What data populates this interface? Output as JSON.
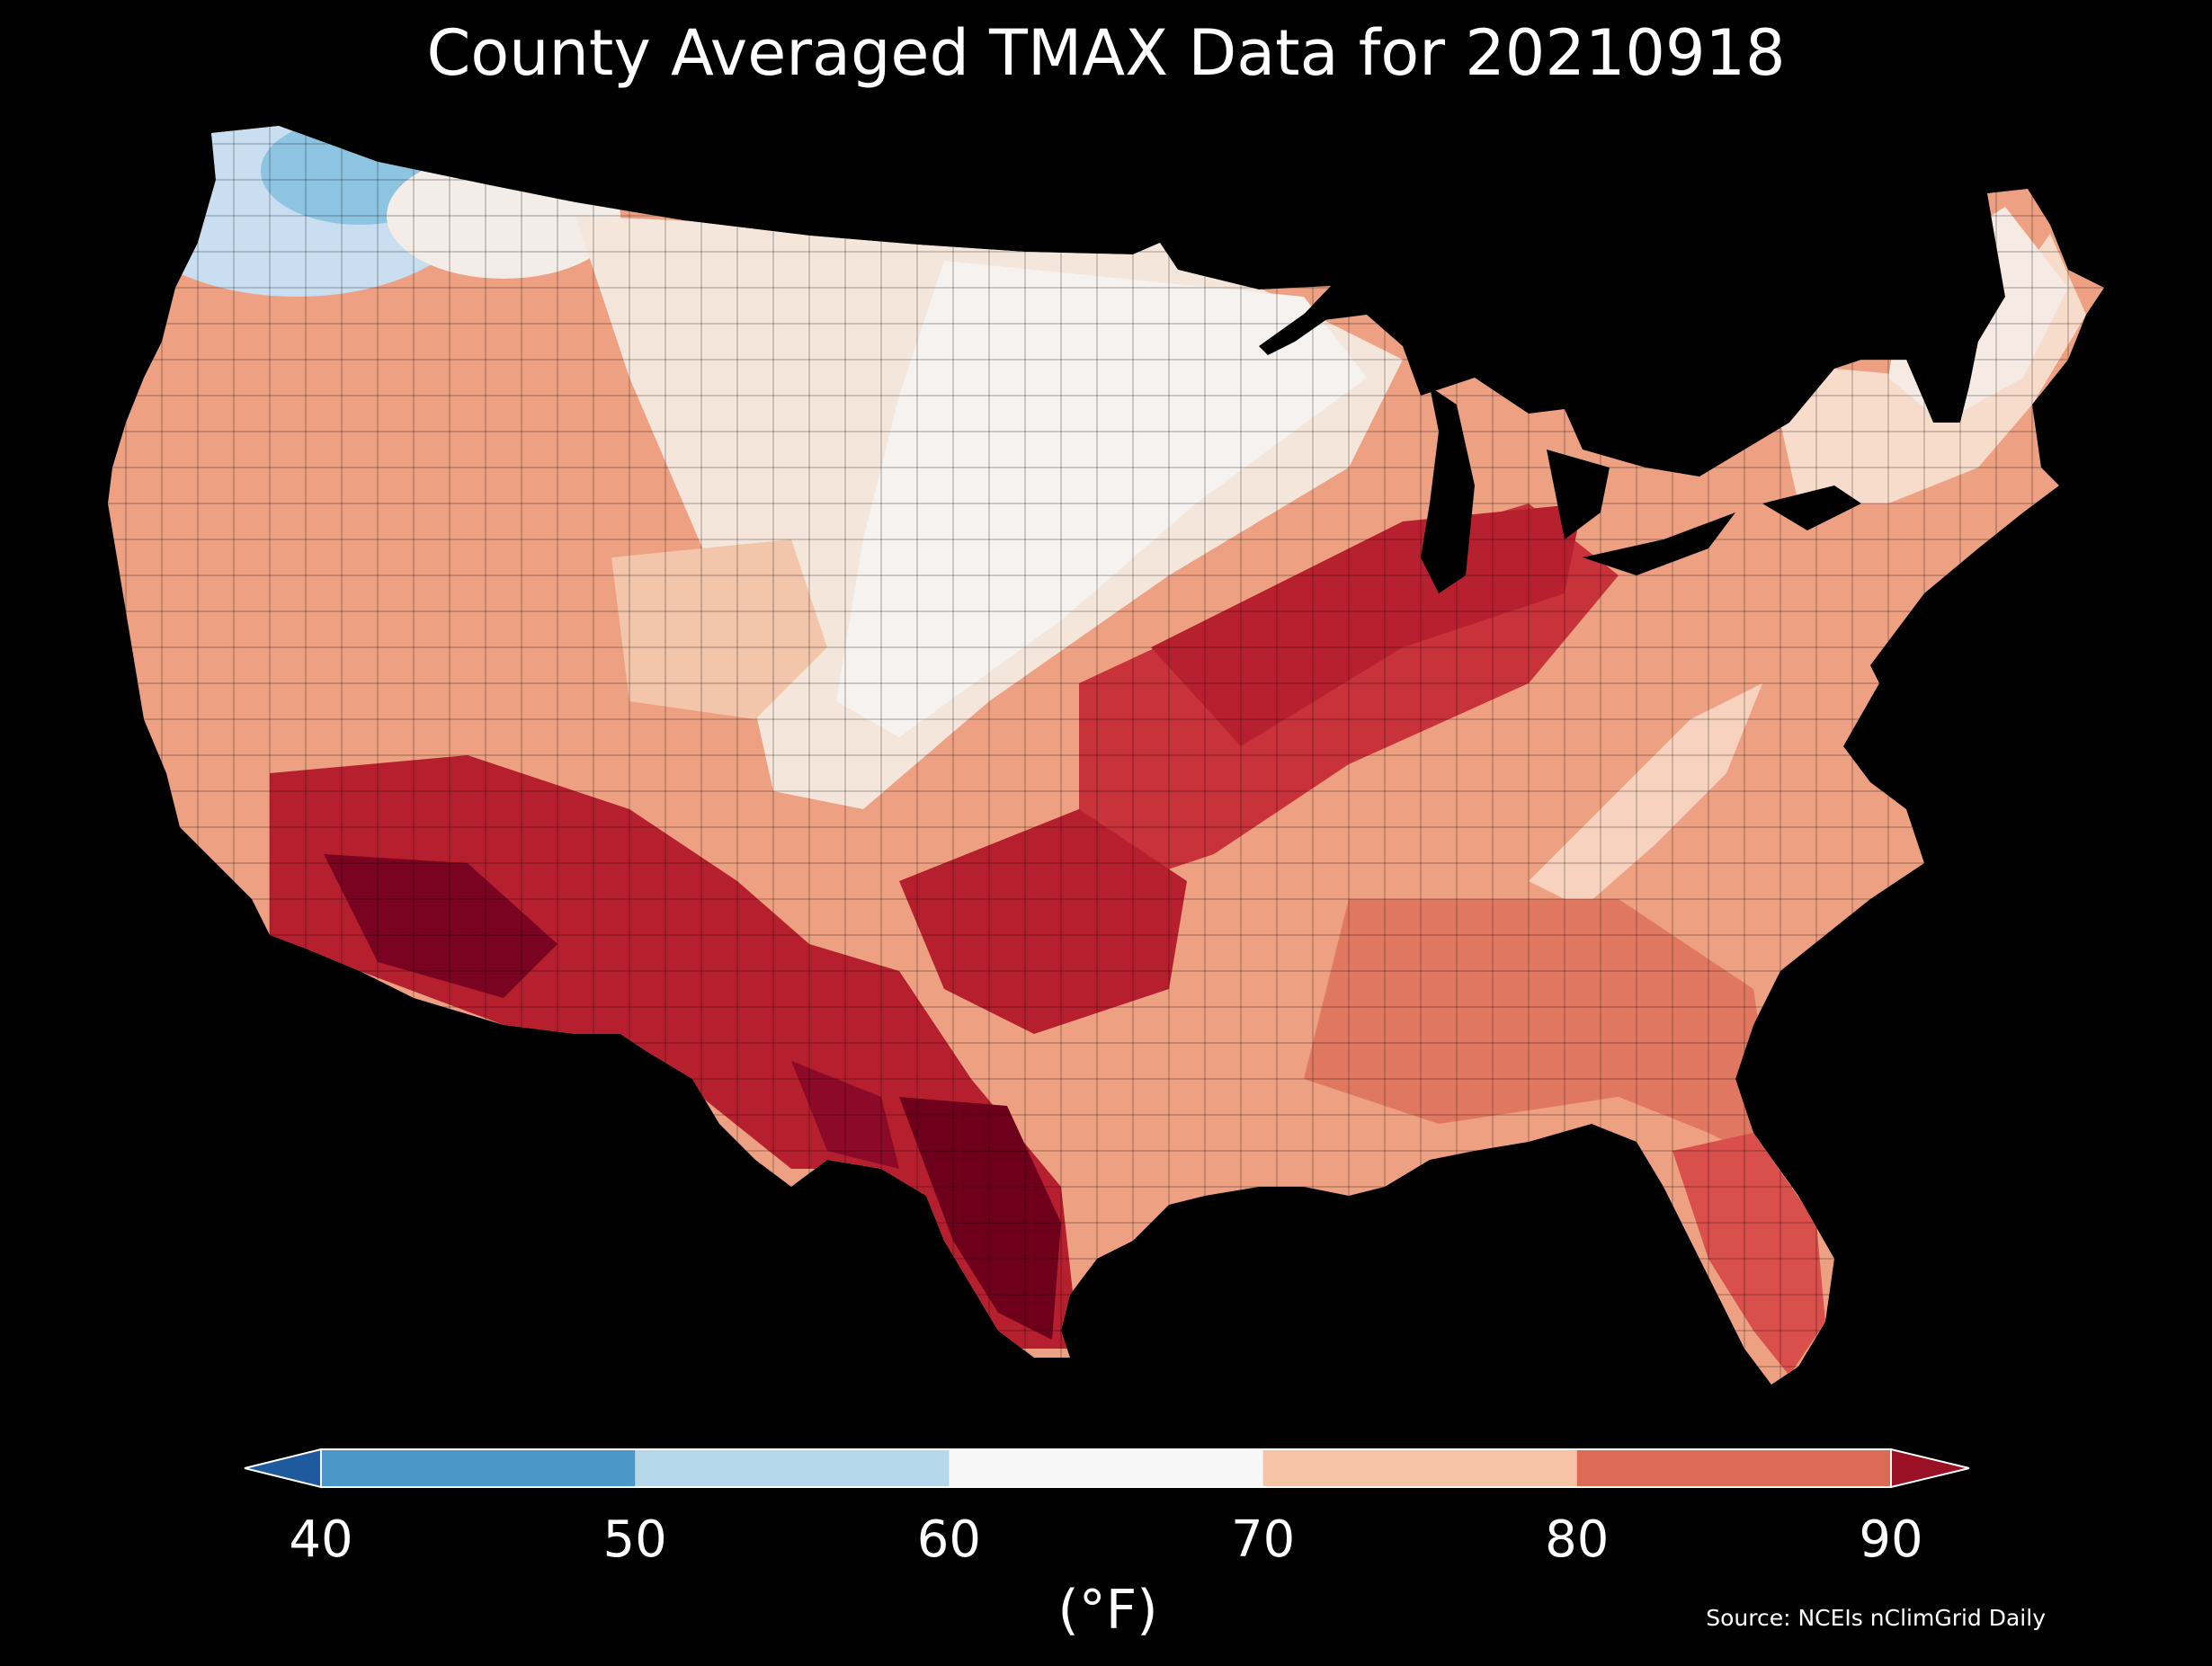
{
  "title": "County Averaged TMAX Data for 20210918",
  "colorbar": {
    "unit_label": "(°F)",
    "ticks": [
      "40",
      "50",
      "60",
      "70",
      "80",
      "90"
    ],
    "bins": [
      {
        "range": "<40",
        "color": "#1f5a9e"
      },
      {
        "range": "40-50",
        "color": "#4b98c8"
      },
      {
        "range": "50-60",
        "color": "#b5d7ea"
      },
      {
        "range": "60-70",
        "color": "#f7f7f7"
      },
      {
        "range": "70-80",
        "color": "#f7c3a6"
      },
      {
        "range": "80-90",
        "color": "#dc6a55"
      },
      {
        "range": ">90",
        "color": "#9a1025"
      }
    ],
    "extend": "both"
  },
  "source": "Source: NCEIs nClimGrid Daily",
  "background_color": "#000000"
}
